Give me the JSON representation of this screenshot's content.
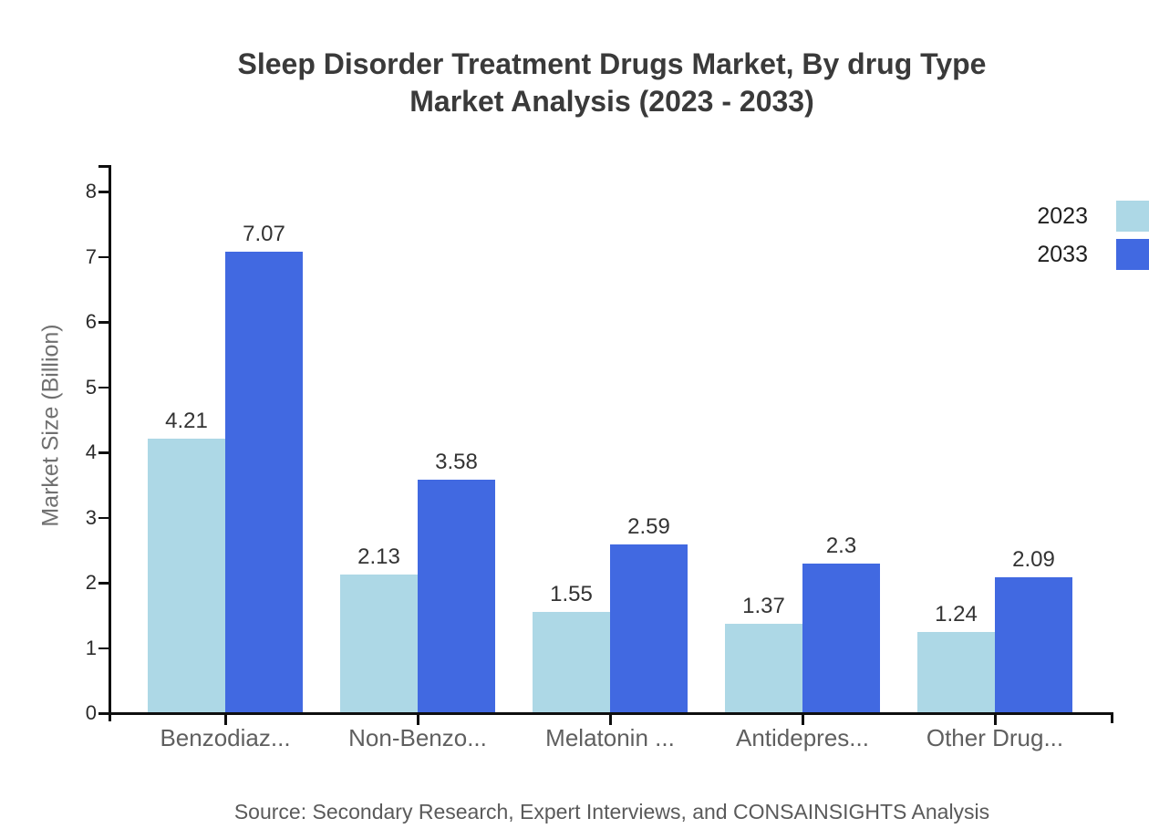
{
  "title": {
    "line1": "Sleep Disorder Treatment Drugs Market, By drug Type",
    "line2": "Market Analysis (2023 - 2033)"
  },
  "y_axis": {
    "label": "Market Size (Billion)"
  },
  "legend": [
    {
      "label": "2023",
      "color": "#ADD8E6"
    },
    {
      "label": "2033",
      "color": "#4169E1"
    }
  ],
  "source": "Source: Secondary Research, Expert Interviews, and CONSAINSIGHTS Analysis",
  "chart_data": {
    "type": "bar",
    "title": "Sleep Disorder Treatment Drugs Market, By drug Type — Market Analysis (2023 - 2033)",
    "categories": [
      "Benzodiaz...",
      "Non-Benzo...",
      "Melatonin ...",
      "Antidepres...",
      "Other Drug..."
    ],
    "series": [
      {
        "name": "2023",
        "color": "#ADD8E6",
        "values": [
          4.21,
          2.13,
          1.55,
          1.37,
          1.24
        ]
      },
      {
        "name": "2033",
        "color": "#4169E1",
        "values": [
          7.07,
          3.58,
          2.59,
          2.3,
          2.09
        ]
      }
    ],
    "xlabel": "",
    "ylabel": "Market Size (Billion)",
    "ylim": [
      0,
      8
    ],
    "yticks": [
      0,
      1,
      2,
      3,
      4,
      5,
      6,
      7,
      8
    ],
    "value_labels": true,
    "grid": false,
    "legend_position": "top-right",
    "background": "#ffffff",
    "axis_color": "#0f0f0f"
  }
}
